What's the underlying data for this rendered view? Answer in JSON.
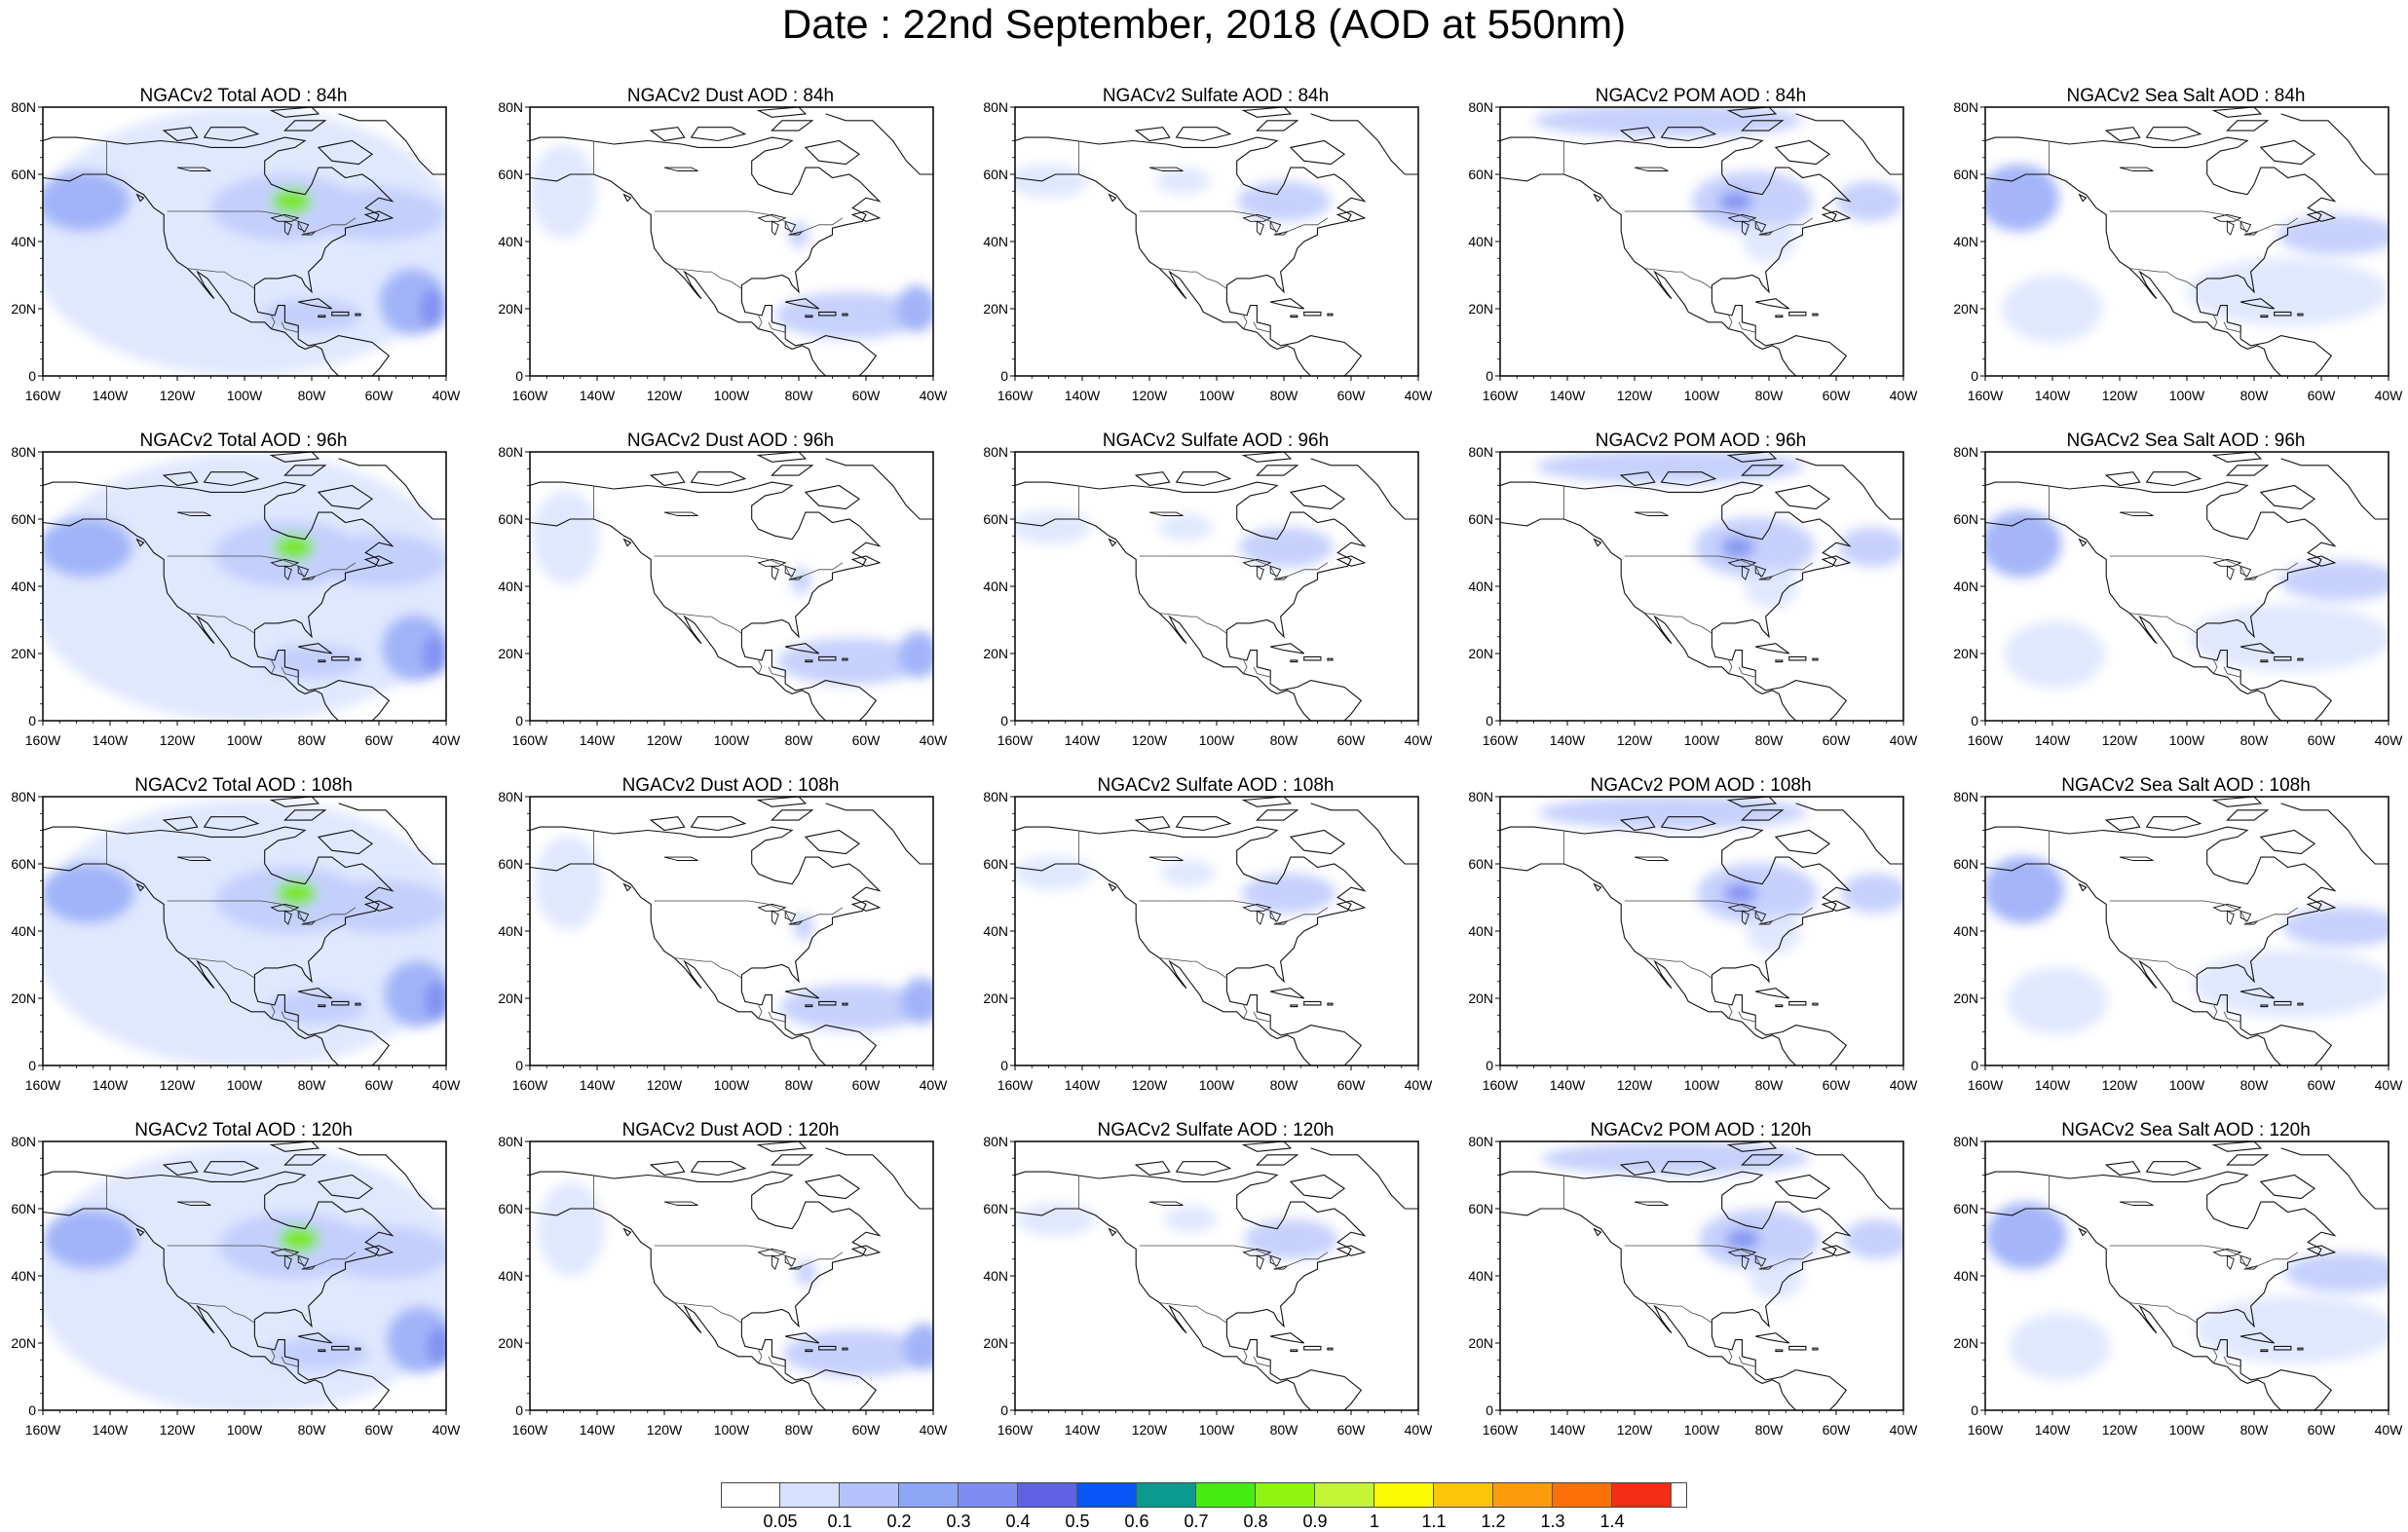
{
  "title": "Date : 22nd September, 2018 (AOD at 550nm)",
  "y_ticks": [
    "80N",
    "60N",
    "40N",
    "20N",
    "0"
  ],
  "x_ticks": [
    "160W",
    "140W",
    "120W",
    "100W",
    "80W",
    "60W",
    "40W"
  ],
  "lead_times": [
    "84h",
    "96h",
    "108h",
    "120h"
  ],
  "products": [
    {
      "key": "total",
      "name": "Total"
    },
    {
      "key": "dust",
      "name": "Dust"
    },
    {
      "key": "sulfate",
      "name": "Sulfate"
    },
    {
      "key": "pom",
      "name": "POM"
    },
    {
      "key": "seasalt",
      "name": "Sea Salt"
    }
  ],
  "panels": [
    [
      "NGACv2 Total AOD : 84h",
      "NGACv2 Dust AOD : 84h",
      "NGACv2 Sulfate AOD : 84h",
      "NGACv2 POM AOD : 84h",
      "NGACv2 Sea Salt AOD : 84h"
    ],
    [
      "NGACv2 Total AOD : 96h",
      "NGACv2 Dust AOD : 96h",
      "NGACv2 Sulfate AOD : 96h",
      "NGACv2 POM AOD : 96h",
      "NGACv2 Sea Salt AOD : 96h"
    ],
    [
      "NGACv2 Total AOD : 108h",
      "NGACv2 Dust AOD : 108h",
      "NGACv2 Sulfate AOD : 108h",
      "NGACv2 POM AOD : 108h",
      "NGACv2 Sea Salt AOD : 108h"
    ],
    [
      "NGACv2 Total AOD : 120h",
      "NGACv2 Dust AOD : 120h",
      "NGACv2 Sulfate AOD : 120h",
      "NGACv2 POM AOD : 120h",
      "NGACv2 Sea Salt  AOD : 120h"
    ]
  ],
  "colorbar": {
    "labels": [
      "0.05",
      "0.1",
      "0.2",
      "0.3",
      "0.4",
      "0.5",
      "0.6",
      "0.7",
      "0.8",
      "0.9",
      "1",
      "1.1",
      "1.2",
      "1.3",
      "1.4"
    ],
    "colors": [
      "#ffffff",
      "#d6e0ff",
      "#b4c3fb",
      "#8fa5f6",
      "#7f8cf0",
      "#5f63e3",
      "#0a55f5",
      "#0a9a8e",
      "#44ec12",
      "#8ef410",
      "#c4f535",
      "#fcfa04",
      "#fcc50a",
      "#fc9c0c",
      "#fc7008",
      "#f52c16"
    ]
  },
  "map_colors": {
    "lightest": "#dde5ff",
    "light": "#c3cffc",
    "medium": "#9fb1f8",
    "dark": "#8191f1",
    "green": "#77e81a"
  }
}
